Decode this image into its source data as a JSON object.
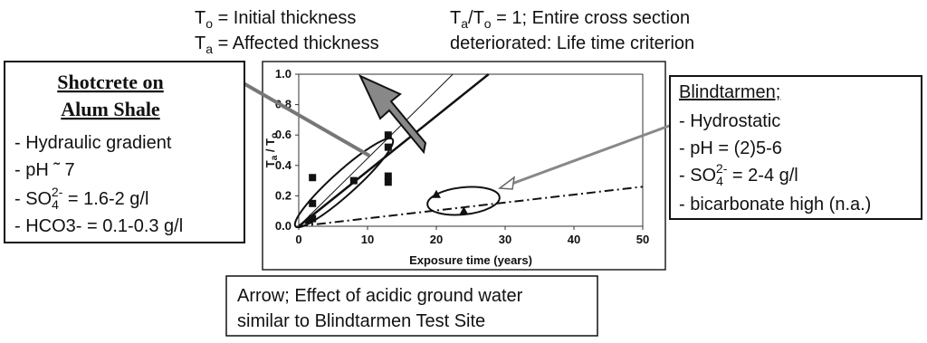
{
  "chart_data": {
    "type": "scatter",
    "x_label": "Exposure time (years)",
    "y_label": [
      "T",
      "a",
      " / T",
      "o"
    ],
    "xlim": [
      0,
      50
    ],
    "ylim": [
      0,
      1
    ],
    "xticks": [
      0,
      10,
      20,
      30,
      40,
      50
    ],
    "yticks": [
      {
        "value": 0,
        "label": "0.0"
      },
      0.2,
      0.4,
      0.6,
      0.8,
      {
        "value": 1,
        "label": "1.0"
      }
    ],
    "series": [
      {
        "marker": "square",
        "color": "#111111",
        "x": [
          2,
          2,
          2,
          8,
          13,
          13,
          13,
          13
        ],
        "y": [
          0.32,
          0.15,
          0.05,
          0.3,
          0.6,
          0.52,
          0.33,
          0.29
        ]
      },
      {
        "marker": "triangle",
        "color": "#111111",
        "x": [
          20,
          24,
          1.5
        ],
        "y": [
          0.21,
          0.1,
          0.04
        ]
      }
    ],
    "trend_lines": [
      {
        "style": "thin",
        "x": [
          0,
          22.4
        ],
        "y": [
          0,
          1
        ]
      },
      {
        "style": "thick",
        "x": [
          0,
          27.6
        ],
        "y": [
          0,
          1
        ]
      },
      {
        "style": "dashdot",
        "x": [
          0,
          50
        ],
        "y": [
          0,
          0.26
        ]
      }
    ]
  },
  "definitions": {
    "line1": [
      "T",
      "o",
      " = Initial thickness"
    ],
    "line2": [
      "T",
      "a",
      " = Affected thickness"
    ]
  },
  "criterion": {
    "line1": [
      "T",
      "a",
      "/T",
      "o",
      " = 1; Entire cross section"
    ],
    "line2": "deteriorated: Life time criterion"
  },
  "left_box": {
    "title": [
      "Shotcrete on",
      "Alum Shale"
    ],
    "items": [
      "- Hydraulic gradient",
      "- pH ˜ 7"
    ],
    "so4": [
      "- SO",
      "4",
      "2-",
      " = 1.6-2 g/l"
    ],
    "hco3": "- HCO3- = 0.1-0.3 g/l"
  },
  "right_box": {
    "title": "Blindtarmen;",
    "items": [
      "- Hydrostatic",
      "- pH = (2)5-6"
    ],
    "so4": [
      "- SO",
      "4",
      "2-",
      " = 2-4 g/l"
    ],
    "last": "- bicarbonate high (n.a.)"
  },
  "bottom_box": {
    "lines": [
      "Arrow; Effect of acidic ground water",
      "similar to Blindtarmen Test Site"
    ]
  }
}
